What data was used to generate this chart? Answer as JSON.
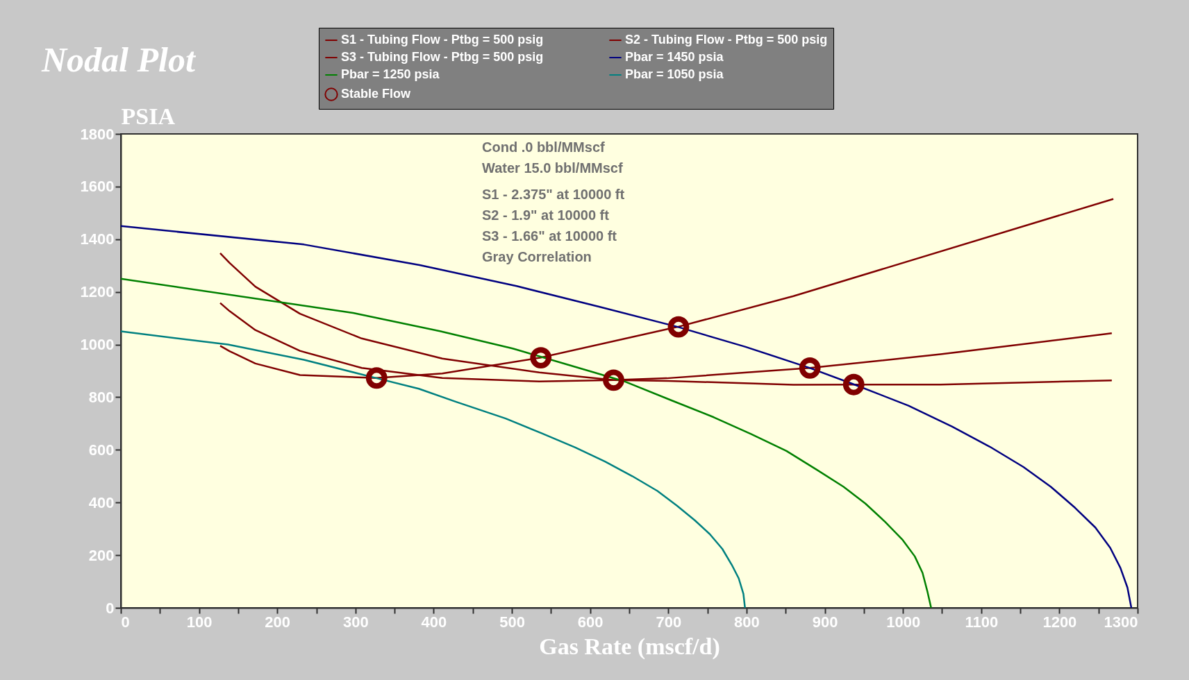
{
  "chart_data": {
    "type": "line",
    "title": "Nodal Plot",
    "xlabel": "Gas Rate (mscf/d)",
    "ylabel": "PSIA",
    "xlim": [
      0,
      1300
    ],
    "ylim": [
      0,
      1800
    ],
    "xticks": [
      0,
      {
        "value": 50,
        "label": null
      },
      100,
      {
        "value": 150,
        "label": null
      },
      200,
      {
        "value": 250,
        "label": null
      },
      300,
      {
        "value": 350,
        "label": null
      },
      400,
      {
        "value": 450,
        "label": null
      },
      500,
      {
        "value": 550,
        "label": null
      },
      600,
      {
        "value": 650,
        "label": null
      },
      700,
      {
        "value": 750,
        "label": null
      },
      800,
      {
        "value": 850,
        "label": null
      },
      900,
      {
        "value": 950,
        "label": null
      },
      1000,
      {
        "value": 1050,
        "label": null
      },
      1100,
      {
        "value": 1150,
        "label": null
      },
      1200,
      {
        "value": 1250,
        "label": null
      },
      1300
    ],
    "yticks": [
      0,
      200,
      400,
      600,
      800,
      1000,
      1200,
      1400,
      1600,
      1800
    ],
    "grid": false,
    "legend": "top",
    "line_style": "solid",
    "annotations": [
      "Cond .0 bbl/MMscf",
      "Water 15.0 bbl/MMscf",
      "S1 - 2.375\" at 10000 ft",
      "S2 - 1.9\" at 10000 ft",
      "S3 - 1.66\" at 10000 ft",
      "Gray Correlation"
    ],
    "series": [
      {
        "name": "S1 - Tubing Flow - Ptbg = 500 psig",
        "color": "#800000",
        "x": [
          127,
          139,
          172,
          229,
          308,
          411,
          535,
          630,
          700,
          860,
          937,
          1048,
          1267
        ],
        "values": [
          1347,
          1310,
          1220,
          1117,
          1023,
          947,
          894,
          865,
          862,
          847,
          848,
          848,
          864
        ]
      },
      {
        "name": "S2 - Tubing Flow - Ptbg = 500 psig",
        "color": "#800000",
        "x": [
          127,
          139,
          172,
          229,
          308,
          411,
          535,
          630,
          698,
          881,
          1048,
          1267
        ],
        "values": [
          1158,
          1127,
          1055,
          976,
          911,
          873,
          860,
          865,
          872,
          911,
          963,
          1043
        ]
      },
      {
        "name": "S3 - Tubing Flow - Ptbg = 500 psig",
        "color": "#800000",
        "x": [
          127,
          139,
          172,
          229,
          326,
          411,
          536,
          698,
          712,
          860,
          1269
        ],
        "values": [
          995,
          975,
          928,
          884,
          873,
          890,
          950,
          1058,
          1067,
          1184,
          1553
        ]
      },
      {
        "name": "Pbar = 1450 psia",
        "color": "#000080",
        "x": [
          0,
          234,
          382,
          506,
          614,
          712,
          798,
          881,
          938,
          1007,
          1063,
          1111,
          1154,
          1189,
          1220,
          1246,
          1265,
          1278,
          1287,
          1292
        ],
        "values": [
          1450,
          1380,
          1302,
          1222,
          1142,
          1067,
          992,
          911,
          848,
          768,
          688,
          612,
          535,
          460,
          380,
          305,
          228,
          152,
          77,
          0
        ]
      },
      {
        "name": "Pbar = 1250 psia",
        "color": "#008000",
        "x": [
          0,
          297,
          408,
          501,
          572,
          645,
          704,
          758,
          806,
          851,
          890,
          924,
          952,
          977,
          999,
          1015,
          1025,
          1031,
          1036
        ],
        "values": [
          1250,
          1120,
          1051,
          985,
          923,
          859,
          788,
          724,
          660,
          596,
          524,
          460,
          396,
          327,
          260,
          196,
          133,
          65,
          0
        ]
      },
      {
        "name": "Pbar = 1050 psia",
        "color": "#008080",
        "x": [
          0,
          137,
          234,
          330,
          381,
          428,
          492,
          538,
          581,
          619,
          654,
          686,
          711,
          734,
          753,
          769,
          781,
          790,
          796,
          798
        ],
        "values": [
          1050,
          1000,
          942,
          870,
          832,
          783,
          719,
          663,
          609,
          556,
          500,
          444,
          388,
          332,
          280,
          224,
          164,
          112,
          53,
          0
        ]
      },
      {
        "name": "Stable Flow",
        "type": "scatter",
        "marker": "circle",
        "color": "#800000",
        "x": [
          327,
          537,
          630,
          713,
          881,
          937
        ],
        "values": [
          873,
          950,
          865,
          1067,
          911,
          848
        ]
      }
    ]
  }
}
